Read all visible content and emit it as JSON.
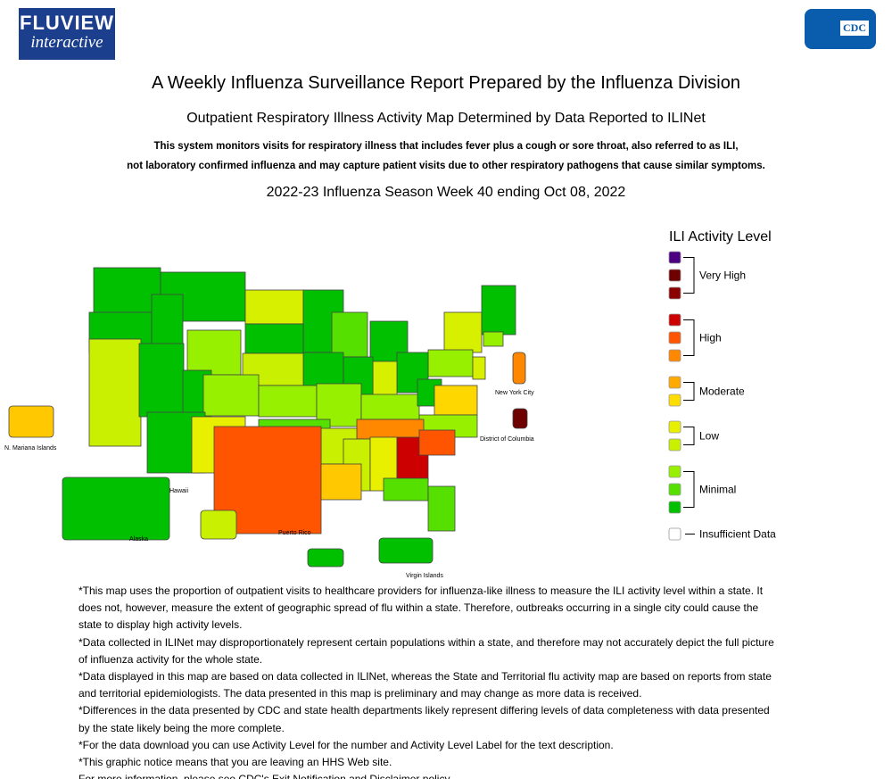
{
  "header": {
    "logo_main": "FLUVIEW",
    "logo_sub": "interactive",
    "cdc": "CDC",
    "title": "A Weekly Influenza Surveillance Report Prepared by the Influenza Division",
    "subtitle": "Outpatient Respiratory Illness Activity Map Determined by Data Reported to ILINet",
    "description": [
      "This system monitors visits for respiratory illness that includes fever plus a cough or sore throat, also referred to as ILI,",
      "not laboratory confirmed influenza and may capture patient visits due to other respiratory pathogens that cause similar symptoms."
    ],
    "week": "2022-23 Influenza Season Week 40 ending Oct 08, 2022"
  },
  "map": {
    "labels": [
      "New York City",
      "District of Columbia",
      "N. Mariana Islands",
      "Hawaii",
      "Alaska",
      "Puerto Rico",
      "Virgin Islands"
    ]
  },
  "legend": {
    "title": "ILI Activity Level",
    "levels": [
      {
        "label": "Very High",
        "colors": [
          "#4b0082",
          "#6e0000",
          "#8b0000"
        ]
      },
      {
        "label": "High",
        "colors": [
          "#cc0000",
          "#ff5500",
          "#ff8800"
        ]
      },
      {
        "label": "Moderate",
        "colors": [
          "#ffaa00",
          "#ffdd00"
        ]
      },
      {
        "label": "Low",
        "colors": [
          "#e8f000",
          "#c8f000"
        ]
      },
      {
        "label": "Minimal",
        "colors": [
          "#96f000",
          "#55e000",
          "#00c000"
        ]
      },
      {
        "label": "Insufficient Data",
        "colors": [
          "#ffffff"
        ]
      }
    ]
  },
  "notes": [
    "*This map uses the proportion of outpatient visits to healthcare providers for influenza-like illness to measure the ILI activity level within a state. It does not, however, measure the extent of geographic spread of flu within a state. Therefore, outbreaks occurring in a single city could cause the state to display high activity levels.",
    "*Data collected in ILINet may disproportionately represent certain populations within a state, and therefore may not accurately depict the full picture of influenza activity for the whole state.",
    "*Data displayed in this map are based on data collected in ILINet, whereas the State and Territorial flu activity map are based on reports from state and territorial epidemiologists. The data presented in this map is preliminary and may change as more data is received.",
    "*Differences in the data presented by CDC and state health departments likely represent differing levels of data completeness with data presented by the state likely being the more complete.",
    "*For the data download you can use Activity Level for the number and Activity Level Label for the text description.",
    "*This graphic notice means that you are leaving an HHS Web site.",
    "For more information, please see CDC's Exit Notification and Disclaimer policy."
  ]
}
